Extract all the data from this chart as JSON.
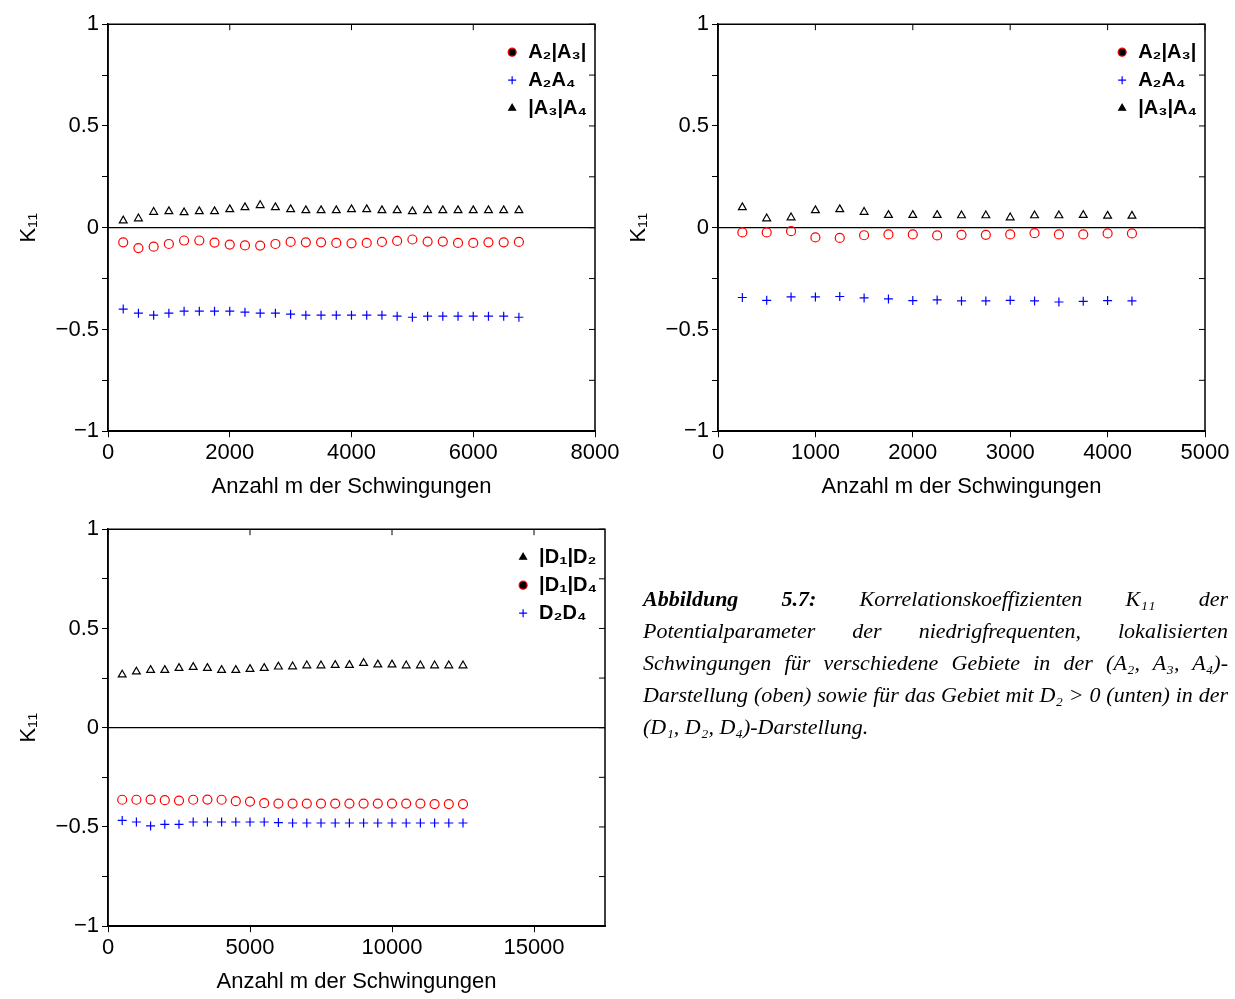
{
  "chart_data": [
    {
      "type": "scatter",
      "xlabel": "Anzahl m der Schwingungen",
      "ylabel": "K₁₁",
      "xlim": [
        0,
        8000
      ],
      "xticks": [
        0,
        2000,
        4000,
        6000,
        8000
      ],
      "ylim": [
        -1,
        1
      ],
      "yticks": [
        -1,
        {
          "value": -0.75,
          "label": null
        },
        -0.5,
        {
          "value": -0.25,
          "label": null
        },
        0,
        {
          "value": 0.25,
          "label": null
        },
        0.5,
        {
          "value": 0.75,
          "label": null
        },
        1
      ],
      "legend": "top right",
      "grid": false,
      "x": [
        250,
        500,
        750,
        1000,
        1250,
        1500,
        1750,
        2000,
        2250,
        2500,
        2750,
        3000,
        3250,
        3500,
        3750,
        4000,
        4250,
        4500,
        4750,
        5000,
        5250,
        5500,
        5750,
        6000,
        6250,
        6500,
        6750
      ],
      "ref_lines": [
        {
          "axis": "y",
          "value": 0,
          "color": "#000000"
        }
      ],
      "series": [
        {
          "name": "A₂|A₃|",
          "color": "#ff0000",
          "marker": "circle",
          "values": [
            -0.072,
            -0.1,
            -0.093,
            -0.08,
            -0.063,
            -0.063,
            -0.073,
            -0.083,
            -0.087,
            -0.088,
            -0.08,
            -0.07,
            -0.072,
            -0.072,
            -0.075,
            -0.077,
            -0.075,
            -0.07,
            -0.065,
            -0.058,
            -0.068,
            -0.068,
            -0.075,
            -0.075,
            -0.072,
            -0.072,
            -0.07
          ]
        },
        {
          "name": "A₂A₄",
          "color": "#0000ff",
          "marker": "cross",
          "values": [
            -0.4,
            -0.42,
            -0.43,
            -0.42,
            -0.41,
            -0.41,
            -0.41,
            -0.41,
            -0.415,
            -0.42,
            -0.42,
            -0.425,
            -0.43,
            -0.43,
            -0.43,
            -0.43,
            -0.43,
            -0.43,
            -0.435,
            -0.44,
            -0.435,
            -0.435,
            -0.435,
            -0.435,
            -0.435,
            -0.435,
            -0.44
          ]
        },
        {
          "name": "|A₃|A₄",
          "color": "#000000",
          "marker": "triangle",
          "values": [
            0.035,
            0.045,
            0.077,
            0.08,
            0.075,
            0.08,
            0.08,
            0.09,
            0.1,
            0.11,
            0.1,
            0.09,
            0.085,
            0.085,
            0.085,
            0.09,
            0.09,
            0.085,
            0.085,
            0.08,
            0.085,
            0.085,
            0.085,
            0.085,
            0.085,
            0.085,
            0.085
          ]
        }
      ]
    },
    {
      "type": "scatter",
      "xlabel": "Anzahl m der Schwingungen",
      "ylabel": "K₁₁",
      "xlim": [
        0,
        5000
      ],
      "xticks": [
        0,
        1000,
        2000,
        3000,
        4000,
        5000
      ],
      "ylim": [
        -1,
        1
      ],
      "yticks": [
        -1,
        {
          "value": -0.75,
          "label": null
        },
        -0.5,
        {
          "value": -0.25,
          "label": null
        },
        0,
        {
          "value": 0.25,
          "label": null
        },
        0.5,
        {
          "value": 0.75,
          "label": null
        },
        1
      ],
      "legend": "top right",
      "grid": false,
      "x": [
        250,
        500,
        750,
        1000,
        1250,
        1500,
        1750,
        2000,
        2250,
        2500,
        2750,
        3000,
        3250,
        3500,
        3750,
        4000,
        4250
      ],
      "ref_lines": [
        {
          "axis": "y",
          "value": 0,
          "color": "#000000"
        }
      ],
      "series": [
        {
          "name": "A₂|A₃|",
          "color": "#ff0000",
          "marker": "circle",
          "values": [
            -0.023,
            -0.023,
            -0.017,
            -0.048,
            -0.05,
            -0.037,
            -0.033,
            -0.033,
            -0.038,
            -0.035,
            -0.035,
            -0.033,
            -0.027,
            -0.033,
            -0.033,
            -0.028,
            -0.028
          ]
        },
        {
          "name": "A₂A₄",
          "color": "#0000ff",
          "marker": "cross",
          "values": [
            -0.343,
            -0.357,
            -0.34,
            -0.34,
            -0.338,
            -0.345,
            -0.35,
            -0.358,
            -0.355,
            -0.36,
            -0.36,
            -0.357,
            -0.36,
            -0.365,
            -0.362,
            -0.358,
            -0.36
          ]
        },
        {
          "name": "|A₃|A₄",
          "color": "#000000",
          "marker": "triangle",
          "values": [
            0.1,
            0.045,
            0.05,
            0.085,
            0.09,
            0.077,
            0.062,
            0.062,
            0.062,
            0.06,
            0.06,
            0.05,
            0.06,
            0.06,
            0.062,
            0.058,
            0.058
          ]
        }
      ]
    },
    {
      "type": "scatter",
      "xlabel": "Anzahl m der Schwingungen",
      "ylabel": "K₁₁",
      "xlim": [
        0,
        17500
      ],
      "xticks": [
        0,
        5000,
        10000,
        15000
      ],
      "ylim": [
        -1,
        1
      ],
      "yticks": [
        -1,
        {
          "value": -0.75,
          "label": null
        },
        -0.5,
        {
          "value": -0.25,
          "label": null
        },
        0,
        {
          "value": 0.25,
          "label": null
        },
        0.5,
        {
          "value": 0.75,
          "label": null
        },
        1
      ],
      "legend": "top right",
      "grid": false,
      "x": [
        500,
        1000,
        1500,
        2000,
        2500,
        3000,
        3500,
        4000,
        4500,
        5000,
        5500,
        6000,
        6500,
        7000,
        7500,
        8000,
        8500,
        9000,
        9500,
        10000,
        10500,
        11000,
        11500,
        12000,
        12500
      ],
      "ref_lines": [
        {
          "axis": "y",
          "value": 0,
          "color": "#000000"
        }
      ],
      "series": [
        {
          "name": "|D₁|D₂",
          "color": "#000000",
          "marker": "triangle",
          "values": [
            0.267,
            0.282,
            0.29,
            0.29,
            0.3,
            0.305,
            0.3,
            0.29,
            0.29,
            0.295,
            0.3,
            0.307,
            0.308,
            0.313,
            0.313,
            0.315,
            0.315,
            0.325,
            0.318,
            0.318,
            0.313,
            0.313,
            0.313,
            0.313,
            0.313
          ]
        },
        {
          "name": "|D₁|D₄",
          "color": "#ff0000",
          "marker": "circle",
          "values": [
            -0.363,
            -0.363,
            -0.362,
            -0.365,
            -0.367,
            -0.363,
            -0.362,
            -0.363,
            -0.37,
            -0.372,
            -0.38,
            -0.382,
            -0.382,
            -0.382,
            -0.382,
            -0.382,
            -0.382,
            -0.382,
            -0.382,
            -0.382,
            -0.382,
            -0.382,
            -0.385,
            -0.385,
            -0.385
          ]
        },
        {
          "name": "D₂D₄",
          "color": "#0000ff",
          "marker": "cross",
          "values": [
            -0.467,
            -0.475,
            -0.495,
            -0.487,
            -0.487,
            -0.475,
            -0.475,
            -0.475,
            -0.475,
            -0.475,
            -0.475,
            -0.478,
            -0.48,
            -0.48,
            -0.48,
            -0.48,
            -0.48,
            -0.48,
            -0.48,
            -0.48,
            -0.48,
            -0.48,
            -0.48,
            -0.48,
            -0.48
          ]
        }
      ]
    },
    {
      "type": "other",
      "title": "Abbildung 5.7:",
      "annotations": [
        "Korrelationskoeffizienten K₁₁ der Potentialparameter der niedrigfrequenten, lokalisierten Schwingungen für verschiedene Gebiete in der (A₂, A₃, A₄)-Darstellung (oben) sowie für das Gebiet mit D₂ > 0 (unten) in der (D₁, D₂, D₄)-Darstellung."
      ]
    }
  ]
}
